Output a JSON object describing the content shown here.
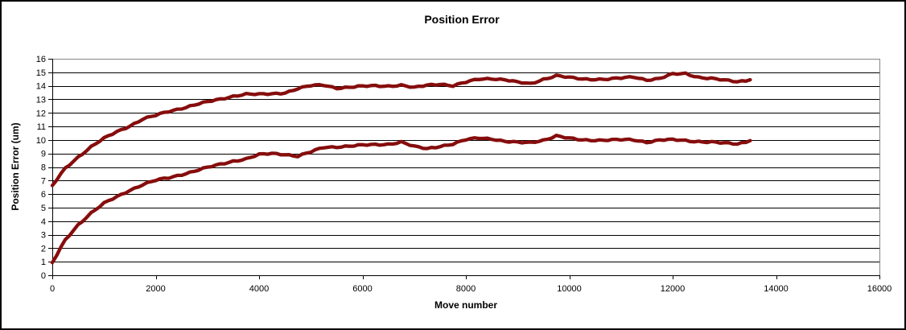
{
  "colors": {
    "series": "#860D0D",
    "gridline": "#000000",
    "axis": "#000000",
    "plot_border": "#848484",
    "frame_border": "#000000",
    "background": "#FFFFFF",
    "text": "#000000"
  },
  "chart_data": {
    "type": "scatter",
    "title": "Position Error",
    "xlabel": "Move number",
    "ylabel": "Position Error (um)",
    "xlim": [
      0,
      16000
    ],
    "ylim": [
      0,
      16
    ],
    "x_ticks": [
      0,
      2000,
      4000,
      6000,
      8000,
      10000,
      12000,
      14000,
      16000
    ],
    "y_ticks": [
      0,
      1,
      2,
      3,
      4,
      5,
      6,
      7,
      8,
      9,
      10,
      11,
      12,
      13,
      14,
      15,
      16
    ],
    "grid": "horizontal-only",
    "legend": "none",
    "series": [
      {
        "name": "upper",
        "points": [
          [
            0,
            6.6
          ],
          [
            250,
            7.9
          ],
          [
            500,
            8.75
          ],
          [
            750,
            9.5
          ],
          [
            1000,
            10.1
          ],
          [
            1250,
            10.6
          ],
          [
            1500,
            11.05
          ],
          [
            1750,
            11.55
          ],
          [
            2000,
            11.8
          ],
          [
            2250,
            12.1
          ],
          [
            2500,
            12.35
          ],
          [
            2750,
            12.6
          ],
          [
            3000,
            12.8
          ],
          [
            3250,
            13.0
          ],
          [
            3500,
            13.25
          ],
          [
            3750,
            13.4
          ],
          [
            4000,
            13.35
          ],
          [
            4250,
            13.4
          ],
          [
            4500,
            13.5
          ],
          [
            4750,
            13.8
          ],
          [
            5000,
            14.0
          ],
          [
            5250,
            14.05
          ],
          [
            5500,
            13.85
          ],
          [
            5750,
            13.9
          ],
          [
            6000,
            13.95
          ],
          [
            6250,
            14.0
          ],
          [
            6500,
            14.0
          ],
          [
            6750,
            14.05
          ],
          [
            7000,
            13.85
          ],
          [
            7250,
            14.05
          ],
          [
            7500,
            14.15
          ],
          [
            7750,
            14.0
          ],
          [
            8000,
            14.25
          ],
          [
            8250,
            14.5
          ],
          [
            8500,
            14.55
          ],
          [
            8750,
            14.45
          ],
          [
            9000,
            14.25
          ],
          [
            9250,
            14.15
          ],
          [
            9500,
            14.5
          ],
          [
            9750,
            14.75
          ],
          [
            10000,
            14.6
          ],
          [
            10250,
            14.5
          ],
          [
            10500,
            14.5
          ],
          [
            10750,
            14.5
          ],
          [
            11000,
            14.55
          ],
          [
            11250,
            14.65
          ],
          [
            11500,
            14.45
          ],
          [
            11750,
            14.55
          ],
          [
            12000,
            14.85
          ],
          [
            12250,
            14.9
          ],
          [
            12500,
            14.65
          ],
          [
            12750,
            14.55
          ],
          [
            13000,
            14.4
          ],
          [
            13250,
            14.3
          ],
          [
            13500,
            14.45
          ]
        ]
      },
      {
        "name": "lower",
        "points": [
          [
            0,
            0.9
          ],
          [
            250,
            2.6
          ],
          [
            500,
            3.75
          ],
          [
            750,
            4.6
          ],
          [
            1000,
            5.3
          ],
          [
            1250,
            5.8
          ],
          [
            1500,
            6.3
          ],
          [
            1750,
            6.7
          ],
          [
            2000,
            7.0
          ],
          [
            2250,
            7.2
          ],
          [
            2500,
            7.45
          ],
          [
            2750,
            7.7
          ],
          [
            3000,
            7.95
          ],
          [
            3250,
            8.2
          ],
          [
            3500,
            8.45
          ],
          [
            3750,
            8.6
          ],
          [
            4000,
            8.9
          ],
          [
            4250,
            9.0
          ],
          [
            4500,
            8.95
          ],
          [
            4750,
            8.8
          ],
          [
            5000,
            9.1
          ],
          [
            5250,
            9.45
          ],
          [
            5500,
            9.5
          ],
          [
            5750,
            9.55
          ],
          [
            6000,
            9.6
          ],
          [
            6250,
            9.65
          ],
          [
            6500,
            9.7
          ],
          [
            6750,
            9.85
          ],
          [
            7000,
            9.5
          ],
          [
            7250,
            9.35
          ],
          [
            7500,
            9.55
          ],
          [
            7750,
            9.7
          ],
          [
            8000,
            10.0
          ],
          [
            8250,
            10.15
          ],
          [
            8500,
            10.1
          ],
          [
            8750,
            9.9
          ],
          [
            9000,
            9.8
          ],
          [
            9250,
            9.8
          ],
          [
            9500,
            10.0
          ],
          [
            9750,
            10.3
          ],
          [
            10000,
            10.1
          ],
          [
            10250,
            10.0
          ],
          [
            10500,
            10.0
          ],
          [
            10750,
            10.0
          ],
          [
            11000,
            10.0
          ],
          [
            11250,
            10.0
          ],
          [
            11500,
            9.85
          ],
          [
            11750,
            10.0
          ],
          [
            12000,
            10.0
          ],
          [
            12250,
            9.95
          ],
          [
            12500,
            9.9
          ],
          [
            12750,
            9.85
          ],
          [
            13000,
            9.75
          ],
          [
            13250,
            9.7
          ],
          [
            13500,
            9.95
          ]
        ]
      }
    ]
  }
}
